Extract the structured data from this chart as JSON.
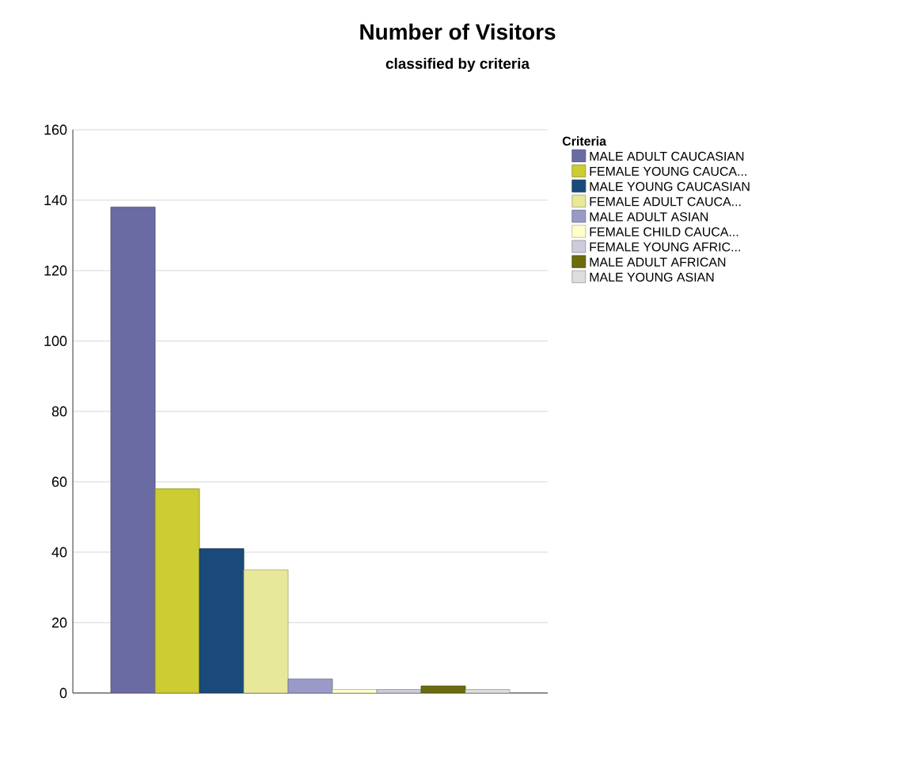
{
  "chart_data": {
    "type": "bar",
    "title": "Number of Visitors",
    "subtitle": "classified by criteria",
    "legend_title": "Criteria",
    "categories": [
      null
    ],
    "series": [
      {
        "name": "MALE ADULT CAUCASIAN",
        "color": "#6b6ba3",
        "values": [
          138
        ]
      },
      {
        "name": "FEMALE YOUNG CAUCA...",
        "color": "#cccc33",
        "values": [
          58
        ]
      },
      {
        "name": "MALE YOUNG CAUCASIAN",
        "color": "#1a4a7a",
        "values": [
          41
        ]
      },
      {
        "name": "FEMALE ADULT CAUCA...",
        "color": "#e8e89a",
        "values": [
          35
        ]
      },
      {
        "name": "MALE ADULT ASIAN",
        "color": "#9a9ac8",
        "values": [
          4
        ]
      },
      {
        "name": "FEMALE CHILD CAUCA...",
        "color": "#ffffcc",
        "values": [
          1
        ]
      },
      {
        "name": "FEMALE YOUNG AFRIC...",
        "color": "#ccccdd",
        "values": [
          1
        ]
      },
      {
        "name": "MALE ADULT AFRICAN",
        "color": "#6b6b10",
        "values": [
          2
        ]
      },
      {
        "name": "MALE YOUNG ASIAN",
        "color": "#dddddd",
        "values": [
          1
        ]
      }
    ],
    "ylim": [
      0,
      160
    ],
    "yticks": [
      0,
      20,
      40,
      60,
      80,
      100,
      120,
      140,
      160
    ],
    "grid": "y",
    "legend": "top right"
  }
}
